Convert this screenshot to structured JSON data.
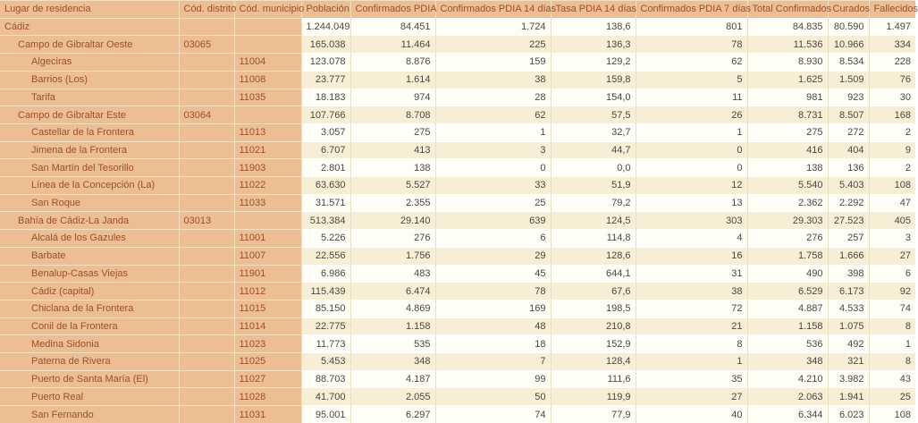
{
  "table": {
    "columns": [
      {
        "key": "lugar",
        "label": "Lugar de residencia"
      },
      {
        "key": "cod-distrito",
        "label": "Cód. distrito"
      },
      {
        "key": "cod-municipio",
        "label": "Cód. municipio"
      },
      {
        "key": "poblacion",
        "label": "Población"
      },
      {
        "key": "confirmados-pdia",
        "label": "Confirmados PDIA"
      },
      {
        "key": "confirmados-pdia-14-dias",
        "label": "Confirmados PDIA 14 días"
      },
      {
        "key": "tasa-pdia-14-dias",
        "label": "Tasa PDIA 14 días"
      },
      {
        "key": "confirmados-pdia-7-dias",
        "label": "Confirmados PDIA 7 días"
      },
      {
        "key": "total-confirmados",
        "label": "Total Confirmados"
      },
      {
        "key": "curados",
        "label": "Curados"
      },
      {
        "key": "fallecidos",
        "label": "Fallecidos"
      }
    ],
    "rows": [
      {
        "level": 0,
        "cells": [
          "Cádiz",
          "",
          "",
          "1.244.049",
          "84.451",
          "1.724",
          "138,6",
          "801",
          "84.835",
          "80.590",
          "1.497"
        ]
      },
      {
        "level": 1,
        "cells": [
          "Campo de Gibraltar Oeste",
          "03065",
          "",
          "165.038",
          "11.464",
          "225",
          "136,3",
          "78",
          "11.536",
          "10.966",
          "334"
        ]
      },
      {
        "level": 2,
        "cells": [
          "Algeciras",
          "",
          "11004",
          "123.078",
          "8.876",
          "159",
          "129,2",
          "62",
          "8.930",
          "8.534",
          "228"
        ]
      },
      {
        "level": 2,
        "cells": [
          "Barrios (Los)",
          "",
          "11008",
          "23.777",
          "1.614",
          "38",
          "159,8",
          "5",
          "1.625",
          "1.509",
          "76"
        ]
      },
      {
        "level": 2,
        "cells": [
          "Tarifa",
          "",
          "11035",
          "18.183",
          "974",
          "28",
          "154,0",
          "11",
          "981",
          "923",
          "30"
        ]
      },
      {
        "level": 1,
        "cells": [
          "Campo de Gibraltar Este",
          "03064",
          "",
          "107.766",
          "8.708",
          "62",
          "57,5",
          "26",
          "8.731",
          "8.507",
          "168"
        ]
      },
      {
        "level": 2,
        "cells": [
          "Castellar de la Frontera",
          "",
          "11013",
          "3.057",
          "275",
          "1",
          "32,7",
          "1",
          "275",
          "272",
          "2"
        ]
      },
      {
        "level": 2,
        "cells": [
          "Jimena de la Frontera",
          "",
          "11021",
          "6.707",
          "413",
          "3",
          "44,7",
          "0",
          "416",
          "404",
          "9"
        ]
      },
      {
        "level": 2,
        "cells": [
          "San Martín del Tesorillo",
          "",
          "11903",
          "2.801",
          "138",
          "0",
          "0,0",
          "0",
          "138",
          "136",
          "2"
        ]
      },
      {
        "level": 2,
        "cells": [
          "Línea de la Concepción (La)",
          "",
          "11022",
          "63.630",
          "5.527",
          "33",
          "51,9",
          "12",
          "5.540",
          "5.403",
          "108"
        ]
      },
      {
        "level": 2,
        "cells": [
          "San Roque",
          "",
          "11033",
          "31.571",
          "2.355",
          "25",
          "79,2",
          "13",
          "2.362",
          "2.292",
          "47"
        ]
      },
      {
        "level": 1,
        "cells": [
          "Bahía de Cádiz-La Janda",
          "03013",
          "",
          "513.384",
          "29.140",
          "639",
          "124,5",
          "303",
          "29.303",
          "27.523",
          "405"
        ]
      },
      {
        "level": 2,
        "cells": [
          "Alcalá de los Gazules",
          "",
          "11001",
          "5.226",
          "276",
          "6",
          "114,8",
          "4",
          "276",
          "257",
          "3"
        ]
      },
      {
        "level": 2,
        "cells": [
          "Barbate",
          "",
          "11007",
          "22.556",
          "1.756",
          "29",
          "128,6",
          "16",
          "1.758",
          "1.666",
          "27"
        ]
      },
      {
        "level": 2,
        "cells": [
          "Benalup-Casas Viejas",
          "",
          "11901",
          "6.986",
          "483",
          "45",
          "644,1",
          "31",
          "490",
          "398",
          "6"
        ]
      },
      {
        "level": 2,
        "cells": [
          "Cádiz (capital)",
          "",
          "11012",
          "115.439",
          "6.474",
          "78",
          "67,6",
          "38",
          "6.529",
          "6.173",
          "92"
        ]
      },
      {
        "level": 2,
        "cells": [
          "Chiclana de la Frontera",
          "",
          "11015",
          "85.150",
          "4.869",
          "169",
          "198,5",
          "72",
          "4.887",
          "4.533",
          "74"
        ]
      },
      {
        "level": 2,
        "cells": [
          "Conil de la Frontera",
          "",
          "11014",
          "22.775",
          "1.158",
          "48",
          "210,8",
          "21",
          "1.158",
          "1.075",
          "8"
        ]
      },
      {
        "level": 2,
        "cells": [
          "Medina Sidonia",
          "",
          "11023",
          "11.773",
          "535",
          "18",
          "152,9",
          "8",
          "536",
          "492",
          "1"
        ]
      },
      {
        "level": 2,
        "cells": [
          "Paterna de Rivera",
          "",
          "11025",
          "5.453",
          "348",
          "7",
          "128,4",
          "1",
          "348",
          "321",
          "8"
        ]
      },
      {
        "level": 2,
        "cells": [
          "Puerto de Santa María (El)",
          "",
          "11027",
          "88.703",
          "4.187",
          "99",
          "111,6",
          "35",
          "4.210",
          "3.982",
          "43"
        ]
      },
      {
        "level": 2,
        "cells": [
          "Puerto Real",
          "",
          "11028",
          "41.700",
          "2.055",
          "50",
          "119,9",
          "27",
          "2.063",
          "1.941",
          "25"
        ]
      },
      {
        "level": 2,
        "cells": [
          "San Fernando",
          "",
          "11031",
          "95.001",
          "6.297",
          "74",
          "77,9",
          "40",
          "6.344",
          "6.023",
          "108"
        ]
      }
    ]
  },
  "colors": {
    "header_bg": "#EBBE93",
    "label_bg": "#EBBE93",
    "label_grid_line": "#F5DFBF",
    "row_bg_even": "#FEFEF7",
    "row_bg_odd": "#F8EDD5",
    "label_text": "#A04E2C",
    "value_text": "#4B4742"
  }
}
